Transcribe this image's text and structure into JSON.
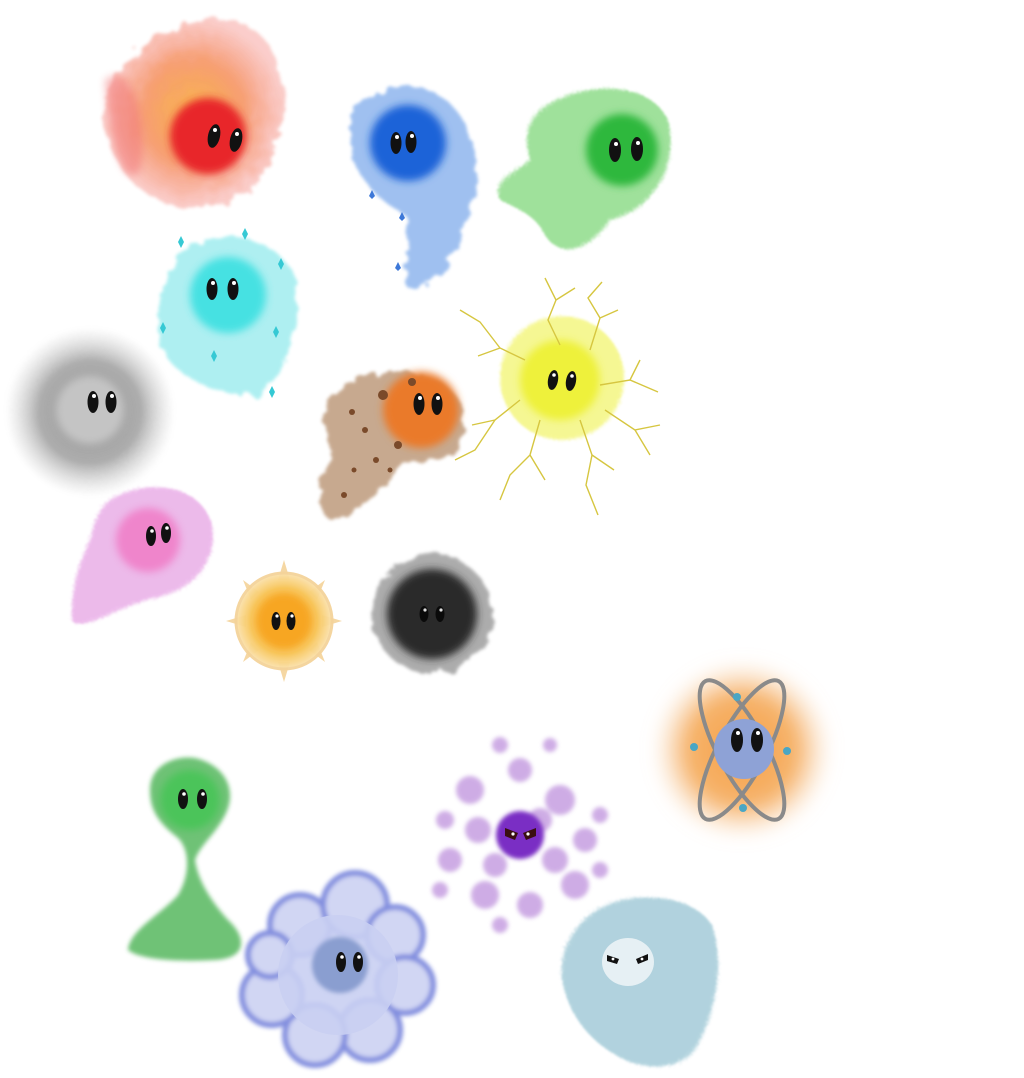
{
  "artwork": {
    "spirits": [
      {
        "name": "fire-spirit",
        "element": "fire",
        "core_color": "#e8252a",
        "aura_color": "#f47a3a",
        "mood": "calm"
      },
      {
        "name": "water-spirit",
        "element": "water",
        "core_color": "#1f63d8",
        "aura_color": "#8fb6ee",
        "mood": "calm"
      },
      {
        "name": "nature-spirit",
        "element": "nature",
        "core_color": "#2fb83c",
        "aura_color": "#8fdc8a",
        "mood": "calm"
      },
      {
        "name": "ice-spirit",
        "element": "ice",
        "core_color": "#34dfe0",
        "aura_color": "#a6eef0",
        "mood": "calm"
      },
      {
        "name": "lightning-spirit",
        "element": "lightning",
        "core_color": "#eef13a",
        "aura_color": "#d6c640",
        "mood": "calm"
      },
      {
        "name": "smoke-spirit",
        "element": "smoke",
        "core_color": "#c4c4c4",
        "aura_color": "#7a7a7a",
        "mood": "calm"
      },
      {
        "name": "earth-spirit",
        "element": "earth",
        "core_color": "#ea7a2b",
        "aura_color": "#b58d6a",
        "mood": "calm"
      },
      {
        "name": "fairy-spirit",
        "element": "fairy",
        "core_color": "#f07cc6",
        "aura_color": "#e8a9e6",
        "mood": "calm"
      },
      {
        "name": "light-spirit",
        "element": "light",
        "core_color": "#f7a622",
        "aura_color": "#f4d39a",
        "mood": "calm"
      },
      {
        "name": "shadow-spirit",
        "element": "shadow",
        "core_color": "#2c2c2c",
        "aura_color": "#6a6a6a",
        "mood": "calm"
      },
      {
        "name": "atom-spirit",
        "element": "energy",
        "core_color": "#8ea2d6",
        "aura_color": "#f39a3a",
        "mood": "calm"
      },
      {
        "name": "poison-spirit",
        "element": "poison",
        "core_color": "#7a2fc4",
        "aura_color": "#a76bd0",
        "mood": "angry"
      },
      {
        "name": "slime-spirit",
        "element": "slime",
        "core_color": "#4bc45a",
        "aura_color": "#3fae4a",
        "mood": "calm"
      },
      {
        "name": "cloud-spirit",
        "element": "air",
        "core_color": "#8a9ed0",
        "aura_color": "#9aa6e6",
        "mood": "calm"
      },
      {
        "name": "wind-spirit",
        "element": "wind",
        "core_color": "#e6f0f4",
        "aura_color": "#9ec8d6",
        "mood": "angry"
      }
    ]
  }
}
